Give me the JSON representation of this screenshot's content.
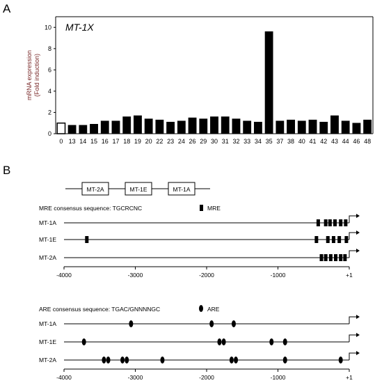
{
  "panel_a": {
    "letter": "A",
    "gene_label": "MT-1X",
    "ylabel_line1": "mRNA expression",
    "ylabel_line2": "(Fold induction)"
  },
  "panel_b": {
    "letter": "B",
    "gene_cluster": [
      "MT-2A",
      "MT-1E",
      "MT-1A"
    ],
    "mre": {
      "consensus_label": "MRE consensus sequence: TGCRCNC",
      "legend_label": "MRE",
      "tracks": [
        {
          "name": "MT-1A",
          "positions": [
            -435,
            -330,
            -270,
            -200,
            -120,
            -50
          ]
        },
        {
          "name": "MT-1E",
          "positions": [
            -3680,
            -460,
            -300,
            -220,
            -140,
            -40
          ]
        },
        {
          "name": "MT-2A",
          "positions": [
            -390,
            -330,
            -260,
            -190,
            -120,
            -60
          ]
        }
      ],
      "axis_ticks": [
        "-4000",
        "-3000",
        "-2000",
        "-1000",
        "+1"
      ]
    },
    "are": {
      "consensus_label": "ARE consensus sequence: TGAC/GNNNNGC",
      "legend_label": "ARE",
      "tracks": [
        {
          "name": "MT-1A",
          "positions": [
            -3060,
            -1930,
            -1620
          ]
        },
        {
          "name": "MT-1E",
          "positions": [
            -3720,
            -1820,
            -1760,
            -1090,
            -900
          ]
        },
        {
          "name": "MT-2A",
          "positions": [
            -3440,
            -3380,
            -3180,
            -3120,
            -2620,
            -1650,
            -1590,
            -900,
            -120
          ]
        }
      ],
      "axis_ticks": [
        "-4000",
        "-3000",
        "-2000",
        "-1000",
        "+1"
      ]
    }
  },
  "chart_data": {
    "type": "bar",
    "title": "MT-1X",
    "ylabel": "mRNA expression (Fold induction)",
    "xlabel": "",
    "ylim": [
      0,
      11
    ],
    "yticks": [
      "0",
      "2",
      "4",
      "6",
      "8",
      "10"
    ],
    "categories": [
      "0",
      "13",
      "14",
      "15",
      "16",
      "17",
      "18",
      "19",
      "20",
      "22",
      "23",
      "24",
      "26",
      "29",
      "30",
      "31",
      "32",
      "33",
      "34",
      "35",
      "37",
      "38",
      "40",
      "41",
      "42",
      "43",
      "44",
      "46",
      "48"
    ],
    "values": [
      1.0,
      0.8,
      0.8,
      0.9,
      1.2,
      1.2,
      1.6,
      1.7,
      1.4,
      1.3,
      1.1,
      1.2,
      1.5,
      1.4,
      1.6,
      1.6,
      1.4,
      1.2,
      1.1,
      9.6,
      1.2,
      1.3,
      1.2,
      1.3,
      1.1,
      1.7,
      1.2,
      1.0,
      1.3
    ],
    "highlight_first_as_open": true
  }
}
